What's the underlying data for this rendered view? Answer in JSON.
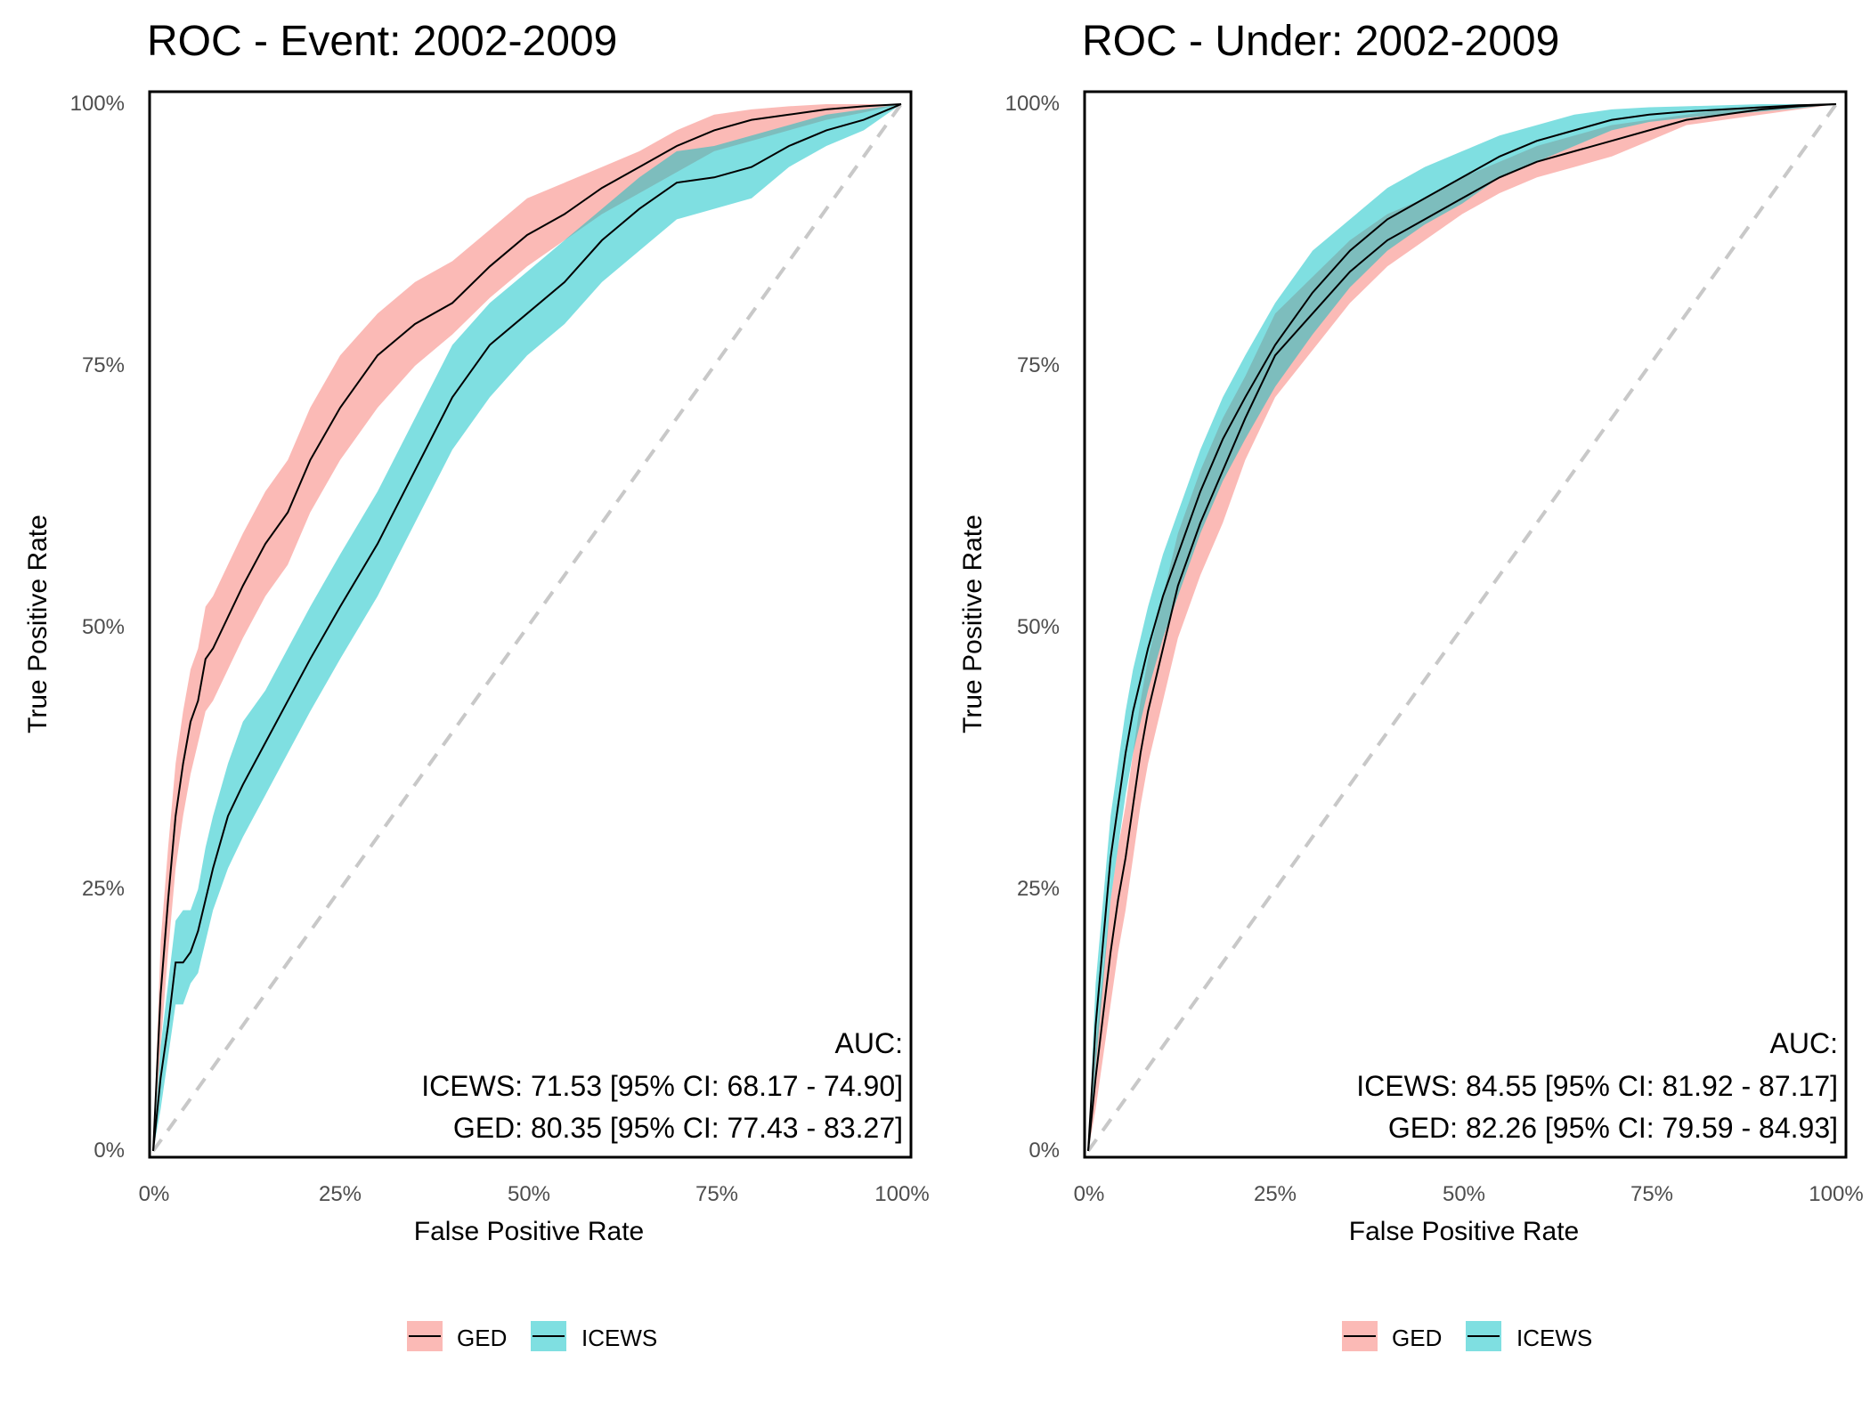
{
  "colors": {
    "ged": "#F8766D",
    "icews": "#00BFC4",
    "line": "#000000",
    "diagonal": "#C8C8C8",
    "tick_text": "#4D4D4D",
    "frame": "#000000"
  },
  "legend": {
    "position": "bottom-center",
    "items": [
      "GED",
      "ICEWS"
    ]
  },
  "chart_data": [
    {
      "type": "line",
      "title": "ROC - Event: 2002-2009",
      "xlabel": "False Positive Rate",
      "ylabel": "True Positive Rate",
      "xlim": [
        0,
        1
      ],
      "ylim": [
        0,
        1
      ],
      "xticks": [
        "0%",
        "25%",
        "50%",
        "75%",
        "100%"
      ],
      "yticks": [
        "0%",
        "25%",
        "50%",
        "75%",
        "100%"
      ],
      "grid": false,
      "legend": "bottom",
      "annotation": [
        "AUC:",
        "ICEWS: 71.53 [95% CI: 68.17 - 74.90]",
        "GED: 80.35 [95% CI: 77.43 - 83.27]"
      ],
      "series": [
        {
          "name": "GED",
          "x": [
            0,
            0.01,
            0.02,
            0.03,
            0.04,
            0.05,
            0.06,
            0.07,
            0.08,
            0.1,
            0.12,
            0.15,
            0.18,
            0.21,
            0.25,
            0.3,
            0.35,
            0.4,
            0.45,
            0.5,
            0.55,
            0.6,
            0.65,
            0.7,
            0.75,
            0.8,
            0.85,
            0.9,
            0.95,
            1.0
          ],
          "y": [
            0,
            0.15,
            0.24,
            0.32,
            0.37,
            0.41,
            0.43,
            0.47,
            0.48,
            0.51,
            0.54,
            0.58,
            0.61,
            0.66,
            0.71,
            0.76,
            0.79,
            0.81,
            0.845,
            0.875,
            0.895,
            0.92,
            0.94,
            0.96,
            0.975,
            0.985,
            0.99,
            0.995,
            0.998,
            1.0
          ],
          "lower": [
            0,
            0.1,
            0.19,
            0.27,
            0.32,
            0.36,
            0.39,
            0.42,
            0.43,
            0.46,
            0.49,
            0.53,
            0.56,
            0.61,
            0.66,
            0.71,
            0.75,
            0.78,
            0.815,
            0.845,
            0.87,
            0.895,
            0.915,
            0.935,
            0.955,
            0.965,
            0.975,
            0.985,
            0.992,
            1.0
          ],
          "upper": [
            0,
            0.2,
            0.29,
            0.37,
            0.42,
            0.46,
            0.48,
            0.52,
            0.53,
            0.56,
            0.59,
            0.63,
            0.66,
            0.71,
            0.76,
            0.8,
            0.83,
            0.85,
            0.88,
            0.91,
            0.925,
            0.94,
            0.955,
            0.975,
            0.99,
            0.995,
            0.998,
            1.0,
            1.0,
            1.0
          ]
        },
        {
          "name": "ICEWS",
          "x": [
            0,
            0.01,
            0.02,
            0.03,
            0.04,
            0.05,
            0.06,
            0.07,
            0.08,
            0.1,
            0.12,
            0.15,
            0.18,
            0.21,
            0.25,
            0.3,
            0.35,
            0.4,
            0.45,
            0.5,
            0.55,
            0.6,
            0.65,
            0.7,
            0.75,
            0.8,
            0.85,
            0.9,
            0.95,
            1.0
          ],
          "y": [
            0,
            0.07,
            0.12,
            0.18,
            0.18,
            0.19,
            0.21,
            0.24,
            0.27,
            0.32,
            0.35,
            0.39,
            0.43,
            0.47,
            0.52,
            0.58,
            0.65,
            0.72,
            0.77,
            0.8,
            0.83,
            0.87,
            0.9,
            0.925,
            0.93,
            0.94,
            0.96,
            0.975,
            0.985,
            1.0
          ],
          "lower": [
            0,
            0.04,
            0.09,
            0.14,
            0.14,
            0.16,
            0.17,
            0.2,
            0.23,
            0.27,
            0.3,
            0.34,
            0.38,
            0.42,
            0.47,
            0.53,
            0.6,
            0.67,
            0.72,
            0.76,
            0.79,
            0.83,
            0.86,
            0.89,
            0.9,
            0.91,
            0.94,
            0.96,
            0.975,
            1.0
          ],
          "upper": [
            0,
            0.1,
            0.16,
            0.22,
            0.23,
            0.23,
            0.25,
            0.29,
            0.32,
            0.37,
            0.41,
            0.44,
            0.48,
            0.52,
            0.57,
            0.63,
            0.7,
            0.77,
            0.81,
            0.84,
            0.87,
            0.9,
            0.93,
            0.955,
            0.96,
            0.97,
            0.98,
            0.99,
            0.995,
            1.0
          ]
        }
      ]
    },
    {
      "type": "line",
      "title": "ROC - Under: 2002-2009",
      "xlabel": "False Positive Rate",
      "ylabel": "True Positive Rate",
      "xlim": [
        0,
        1
      ],
      "ylim": [
        0,
        1
      ],
      "xticks": [
        "0%",
        "25%",
        "50%",
        "75%",
        "100%"
      ],
      "yticks": [
        "0%",
        "25%",
        "50%",
        "75%",
        "100%"
      ],
      "grid": false,
      "legend": "bottom",
      "annotation": [
        "AUC:",
        "ICEWS: 84.55 [95% CI: 81.92 - 87.17]",
        "GED: 82.26 [95% CI: 79.59 - 84.93]"
      ],
      "series": [
        {
          "name": "GED",
          "x": [
            0,
            0.01,
            0.02,
            0.03,
            0.04,
            0.05,
            0.06,
            0.07,
            0.08,
            0.1,
            0.12,
            0.15,
            0.18,
            0.21,
            0.25,
            0.3,
            0.35,
            0.4,
            0.45,
            0.5,
            0.55,
            0.6,
            0.65,
            0.7,
            0.75,
            0.8,
            0.85,
            0.9,
            0.95,
            1.0
          ],
          "y": [
            0,
            0.07,
            0.13,
            0.19,
            0.24,
            0.28,
            0.33,
            0.38,
            0.42,
            0.48,
            0.54,
            0.6,
            0.65,
            0.7,
            0.76,
            0.8,
            0.84,
            0.87,
            0.89,
            0.91,
            0.93,
            0.945,
            0.955,
            0.965,
            0.975,
            0.985,
            0.99,
            0.995,
            0.998,
            1.0
          ],
          "lower": [
            0,
            0.04,
            0.09,
            0.14,
            0.19,
            0.23,
            0.28,
            0.33,
            0.37,
            0.43,
            0.49,
            0.55,
            0.6,
            0.66,
            0.72,
            0.765,
            0.81,
            0.845,
            0.87,
            0.895,
            0.915,
            0.93,
            0.94,
            0.95,
            0.965,
            0.98,
            0.985,
            0.99,
            0.995,
            1.0
          ],
          "upper": [
            0,
            0.1,
            0.17,
            0.24,
            0.29,
            0.33,
            0.38,
            0.43,
            0.47,
            0.53,
            0.59,
            0.65,
            0.7,
            0.74,
            0.8,
            0.835,
            0.87,
            0.895,
            0.91,
            0.93,
            0.945,
            0.96,
            0.97,
            0.98,
            0.985,
            0.99,
            0.995,
            0.998,
            1.0,
            1.0
          ]
        },
        {
          "name": "ICEWS",
          "x": [
            0,
            0.01,
            0.02,
            0.03,
            0.04,
            0.05,
            0.06,
            0.07,
            0.08,
            0.1,
            0.12,
            0.15,
            0.18,
            0.21,
            0.25,
            0.3,
            0.35,
            0.4,
            0.45,
            0.5,
            0.55,
            0.6,
            0.65,
            0.7,
            0.75,
            0.8,
            0.85,
            0.9,
            0.95,
            1.0
          ],
          "y": [
            0,
            0.12,
            0.2,
            0.28,
            0.33,
            0.38,
            0.42,
            0.45,
            0.48,
            0.53,
            0.57,
            0.63,
            0.68,
            0.72,
            0.77,
            0.82,
            0.86,
            0.89,
            0.91,
            0.93,
            0.95,
            0.965,
            0.975,
            0.985,
            0.99,
            0.993,
            0.995,
            0.997,
            0.999,
            1.0
          ],
          "lower": [
            0,
            0.08,
            0.16,
            0.24,
            0.29,
            0.34,
            0.38,
            0.41,
            0.44,
            0.49,
            0.53,
            0.59,
            0.64,
            0.68,
            0.73,
            0.78,
            0.825,
            0.86,
            0.885,
            0.905,
            0.93,
            0.945,
            0.96,
            0.975,
            0.983,
            0.987,
            0.99,
            0.993,
            0.996,
            1.0
          ],
          "upper": [
            0,
            0.16,
            0.24,
            0.32,
            0.37,
            0.42,
            0.46,
            0.49,
            0.52,
            0.57,
            0.61,
            0.67,
            0.72,
            0.76,
            0.81,
            0.86,
            0.89,
            0.92,
            0.94,
            0.955,
            0.97,
            0.98,
            0.99,
            0.995,
            0.997,
            0.998,
            0.999,
            1.0,
            1.0,
            1.0
          ]
        }
      ]
    }
  ]
}
